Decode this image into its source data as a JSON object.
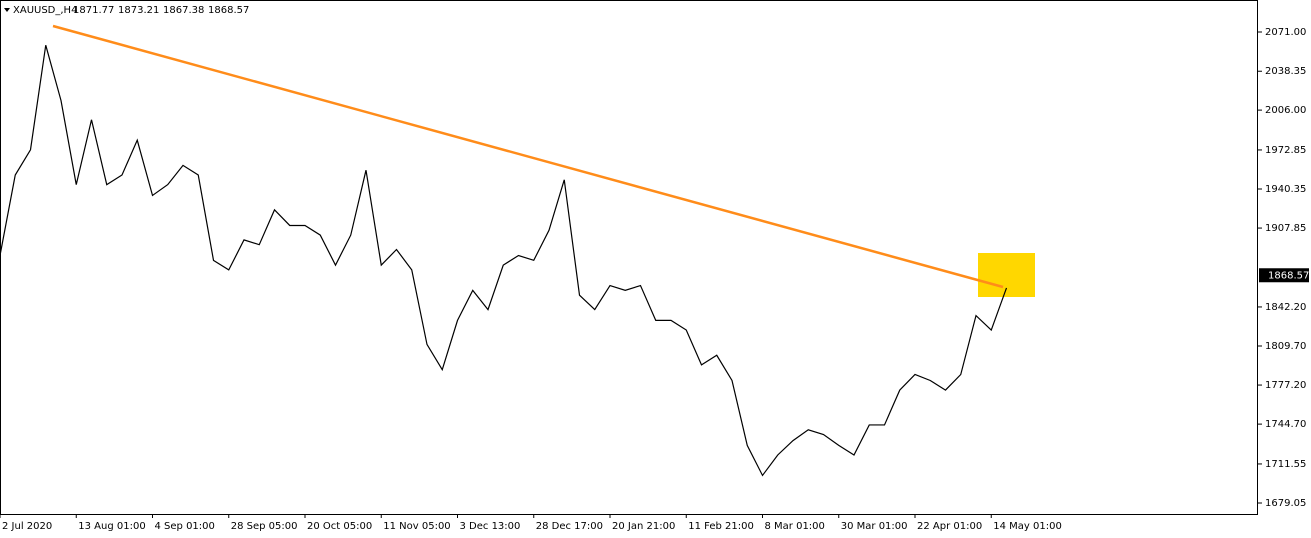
{
  "chart_data": {
    "type": "line",
    "symbol": "XAUUSD_,H4",
    "ohlc": [
      "1871.77",
      "1873.21",
      "1867.38",
      "1868.57"
    ],
    "last_price": {
      "value": 1868.57,
      "label": "1868.57"
    },
    "categories": [
      "2 Jul 2020",
      null,
      null,
      null,
      null,
      "13 Aug 01:00",
      null,
      null,
      null,
      null,
      "4 Sep 01:00",
      null,
      null,
      null,
      null,
      "28 Sep 05:00",
      null,
      null,
      null,
      null,
      "20 Oct 05:00",
      null,
      null,
      null,
      null,
      "11 Nov 05:00",
      null,
      null,
      null,
      null,
      "3 Dec 13:00",
      null,
      null,
      null,
      null,
      "28 Dec 17:00",
      null,
      null,
      null,
      null,
      "20 Jan 21:00",
      null,
      null,
      null,
      null,
      "11 Feb 21:00",
      null,
      null,
      null,
      null,
      "8 Mar 01:00",
      null,
      null,
      null,
      null,
      "30 Mar 01:00",
      null,
      null,
      null,
      null,
      "22 Apr 01:00",
      null,
      null,
      null,
      null,
      "14 May 01:00",
      null
    ],
    "series": [
      {
        "name": "XAUUSD_",
        "color": "#000000",
        "values": [
          1885,
          1952,
          1973,
          2060,
          2014,
          1944,
          1998,
          1944,
          1952,
          1981,
          1935,
          1944,
          1960,
          1952,
          1881,
          1873,
          1898,
          1894,
          1923,
          1910,
          1910,
          1902,
          1877,
          1902,
          1956,
          1877,
          1890,
          1873,
          1811,
          1790,
          1831,
          1856,
          1840,
          1877,
          1885,
          1881,
          1906,
          1948,
          1852,
          1840,
          1860,
          1856,
          1860,
          1831,
          1831,
          1823,
          1794,
          1802,
          1781,
          1727,
          1702,
          1719,
          1731,
          1740,
          1736,
          1727,
          1719,
          1744,
          1744,
          1773,
          1786,
          1781,
          1773,
          1786,
          1835,
          1823,
          1858
        ]
      }
    ],
    "ylim": [
      1669.9,
      2097.63
    ],
    "yticks": [
      {
        "value": 2071.0,
        "label": "2071.00"
      },
      {
        "value": 2038.35,
        "label": "2038.35"
      },
      {
        "value": 2006.0,
        "label": "2006.00"
      },
      {
        "value": 1972.85,
        "label": "1972.85"
      },
      {
        "value": 1940.35,
        "label": "1940.35"
      },
      {
        "value": 1907.85,
        "label": "1907.85"
      },
      {
        "value": 1842.2,
        "label": "1842.20"
      },
      {
        "value": 1809.7,
        "label": "1809.70"
      },
      {
        "value": 1777.2,
        "label": "1777.20"
      },
      {
        "value": 1744.7,
        "label": "1744.70"
      },
      {
        "value": 1711.55,
        "label": "1711.55"
      },
      {
        "value": 1679.05,
        "label": "1679.05"
      }
    ]
  }
}
